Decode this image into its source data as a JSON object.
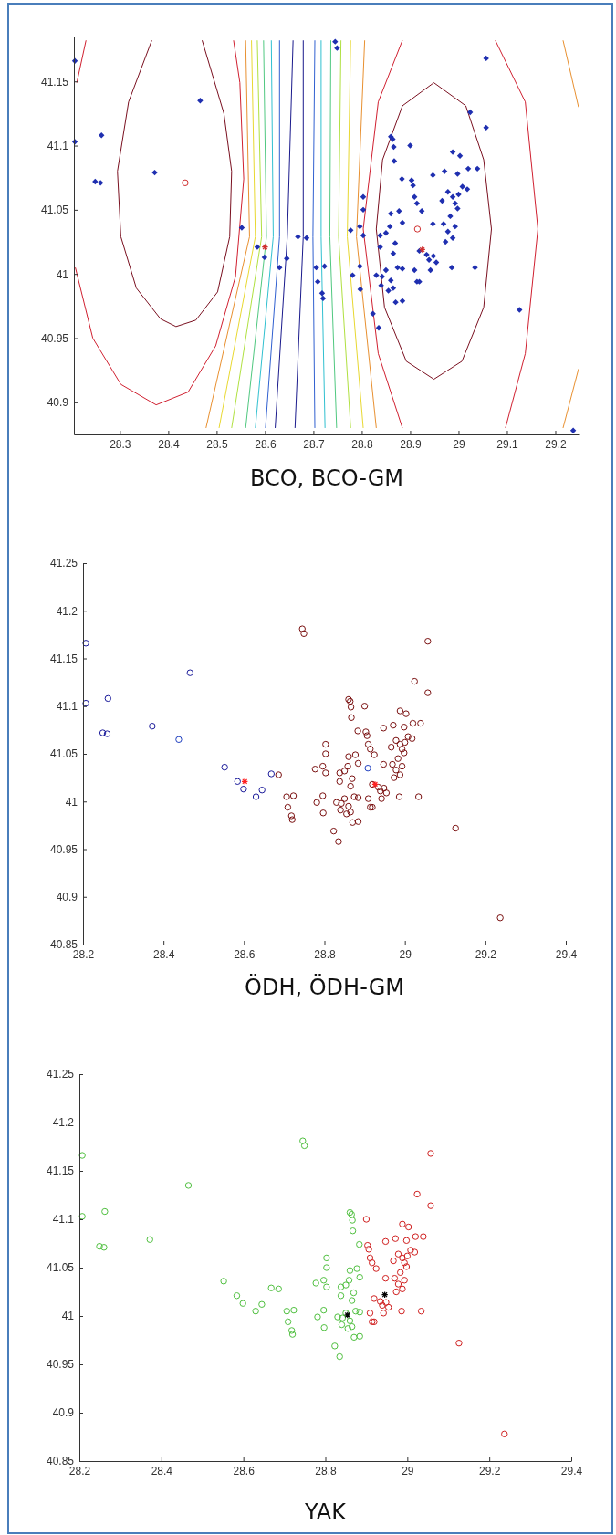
{
  "chart_data": [
    {
      "type": "scatter",
      "title": "BCO, BCO-GM",
      "xlim": [
        28.205,
        29.25
      ],
      "ylim": [
        40.875,
        41.185
      ],
      "xticks": [
        28.3,
        28.4,
        28.5,
        28.6,
        28.7,
        28.8,
        28.9,
        29,
        29.1,
        29.2
      ],
      "yticks": [
        40.9,
        40.95,
        41,
        41.05,
        41.1,
        41.15
      ],
      "grid": false,
      "series": [
        {
          "type": "line",
          "color": "#7a1020",
          "x": [
            28.366,
            28.318,
            28.295,
            28.302,
            28.334,
            28.384,
            28.416,
            28.457,
            28.502,
            28.527,
            28.531,
            28.515,
            28.47
          ],
          "values": [
            41.182,
            41.134,
            41.08,
            41.029,
            40.989,
            40.965,
            40.959,
            40.964,
            40.986,
            41.029,
            41.08,
            41.125,
            41.182
          ]
        },
        {
          "type": "line",
          "color": "#7a1020",
          "x": [
            28.949,
            28.884,
            28.843,
            28.83,
            28.847,
            28.892,
            28.949
          ],
          "values": [
            41.149,
            41.131,
            41.089,
            41.035,
            40.974,
            40.932,
            40.918
          ]
        },
        {
          "type": "line",
          "color": "#7a1020",
          "x": [
            28.949,
            29.007,
            29.052,
            29.068,
            29.052,
            29.015,
            28.949
          ],
          "values": [
            40.918,
            40.932,
            40.974,
            41.035,
            41.089,
            41.131,
            41.149
          ]
        },
        {
          "type": "line",
          "color": "#d02030",
          "x": [
            28.23,
            28.211
          ],
          "values": [
            41.182,
            41.149
          ]
        },
        {
          "type": "line",
          "color": "#d02030",
          "x": [
            28.208,
            28.244,
            28.302,
            28.375,
            28.441,
            28.498,
            28.539,
            28.556,
            28.548,
            28.535
          ],
          "values": [
            41.005,
            40.95,
            40.914,
            40.898,
            40.908,
            40.944,
            40.998,
            41.074,
            41.149,
            41.182
          ]
        },
        {
          "type": "line",
          "color": "#d02030",
          "x": [
            28.884,
            28.834,
            28.803,
            28.834,
            28.884
          ],
          "values": [
            41.182,
            41.134,
            41.035,
            40.938,
            40.88
          ]
        },
        {
          "type": "line",
          "color": "#d02030",
          "x": [
            29.076,
            29.138,
            29.164,
            29.138,
            29.097
          ],
          "values": [
            41.182,
            41.134,
            41.035,
            40.938,
            40.88
          ]
        },
        {
          "type": "line",
          "color": "#e89030",
          "x": [
            29.216,
            29.248
          ],
          "values": [
            41.182,
            41.13
          ]
        },
        {
          "type": "line",
          "color": "#e89030",
          "x": [
            29.248,
            29.216
          ],
          "values": [
            40.926,
            40.88
          ]
        },
        {
          "type": "line",
          "color": "#e89030",
          "x": [
            28.56,
            28.568,
            28.478
          ],
          "values": [
            41.182,
            41.029,
            40.88
          ]
        },
        {
          "type": "line",
          "color": "#e8d830",
          "x": [
            28.572,
            28.58,
            28.505
          ],
          "values": [
            41.182,
            41.029,
            40.88
          ]
        },
        {
          "type": "line",
          "color": "#b0e040",
          "x": [
            28.584,
            28.593,
            28.531
          ],
          "values": [
            41.182,
            41.029,
            40.88
          ]
        },
        {
          "type": "line",
          "color": "#50c880",
          "x": [
            28.597,
            28.603,
            28.56
          ],
          "values": [
            41.182,
            41.029,
            40.88
          ]
        },
        {
          "type": "line",
          "color": "#30c0d0",
          "x": [
            28.613,
            28.617,
            28.58
          ],
          "values": [
            41.182,
            41.029,
            40.88
          ]
        },
        {
          "type": "line",
          "color": "#3060d0",
          "x": [
            28.63,
            28.63,
            28.601
          ],
          "values": [
            41.182,
            41.029,
            40.88
          ]
        },
        {
          "type": "line",
          "color": "#1a1a8c",
          "x": [
            28.658,
            28.646,
            28.621
          ],
          "values": [
            41.182,
            41.029,
            40.88
          ]
        },
        {
          "type": "line",
          "color": "#1a1a8c",
          "x": [
            28.679,
            28.679,
            28.662
          ],
          "values": [
            41.182,
            41.029,
            40.88
          ]
        },
        {
          "type": "line",
          "color": "#3060d0",
          "x": [
            28.703,
            28.699,
            28.703
          ],
          "values": [
            41.182,
            41.029,
            40.88
          ]
        },
        {
          "type": "line",
          "color": "#30c0d0",
          "x": [
            28.716,
            28.716,
            28.724
          ],
          "values": [
            41.182,
            41.029,
            40.88
          ]
        },
        {
          "type": "line",
          "color": "#50c880",
          "x": [
            28.736,
            28.734,
            28.748
          ],
          "values": [
            41.182,
            41.029,
            40.88
          ]
        },
        {
          "type": "line",
          "color": "#b0e040",
          "x": [
            28.757,
            28.752,
            28.777
          ],
          "values": [
            41.182,
            41.029,
            40.88
          ]
        },
        {
          "type": "line",
          "color": "#e8d830",
          "x": [
            28.777,
            28.77,
            28.803
          ],
          "values": [
            41.182,
            41.029,
            40.88
          ]
        },
        {
          "type": "line",
          "color": "#e89030",
          "x": [
            28.806,
            28.789,
            28.83
          ],
          "values": [
            41.182,
            41.029,
            40.88
          ]
        },
        {
          "type": "scatter",
          "marker": "diamond",
          "color": "#1f2fb0",
          "x": [
            28.207,
            28.207,
            28.262,
            28.466,
            28.249,
            28.26,
            28.372,
            28.552,
            28.584,
            28.599,
            28.63,
            28.645,
            28.668,
            28.745,
            28.749,
            28.686,
            28.86,
            28.864,
            28.866,
            28.867,
            28.883,
            28.803,
            28.803,
            28.877,
            28.86,
            28.858,
            28.85,
            28.838,
            28.838,
            28.869,
            28.884,
            28.865,
            28.777,
            28.796,
            28.803,
            28.796,
            28.781,
            28.797,
            28.706,
            28.723,
            28.709,
            28.718,
            28.72,
            28.823,
            28.835,
            28.83,
            28.842,
            28.84,
            28.85,
            28.86,
            28.865,
            28.87,
            28.884,
            28.855,
            28.874,
            28.884,
            29.057,
            29.024,
            29.057,
            28.9,
            28.988,
            29.003,
            28.971,
            28.998,
            29.02,
            29.039,
            28.903,
            28.906,
            28.947,
            28.909,
            28.914,
            28.924,
            28.966,
            28.978,
            28.988,
            28.993,
            29.0,
            29.008,
            28.998,
            28.909,
            28.914,
            28.919,
            28.947,
            28.919,
            28.934,
            28.939,
            28.948,
            28.942,
            28.954,
            28.969,
            28.978,
            28.973,
            28.988,
            28.993,
            28.986,
            29.034,
            29.126,
            29.237,
            28.983,
            29.018
          ],
          "values": [
            41.166,
            41.103,
            41.108,
            41.135,
            41.072,
            41.071,
            41.079,
            41.036,
            41.021,
            41.013,
            41.005,
            41.012,
            41.029,
            41.181,
            41.176,
            41.028,
            41.107,
            41.105,
            41.099,
            41.088,
            41.074,
            41.06,
            41.05,
            41.049,
            41.047,
            41.037,
            41.032,
            41.03,
            41.021,
            41.024,
            41.04,
            41.016,
            41.034,
            41.037,
            41.03,
            41.006,
            40.999,
            40.988,
            41.005,
            41.006,
            40.994,
            40.985,
            40.981,
            40.969,
            40.958,
            40.999,
            40.998,
            40.991,
            41.003,
            40.995,
            40.989,
            40.978,
            40.979,
            40.987,
            41.005,
            41.004,
            41.168,
            41.126,
            41.114,
            41.1,
            41.095,
            41.092,
            41.08,
            41.078,
            41.082,
            41.082,
            41.073,
            41.069,
            41.077,
            41.06,
            41.055,
            41.049,
            41.057,
            41.064,
            41.06,
            41.055,
            41.062,
            41.068,
            41.051,
            41.003,
            40.994,
            40.994,
            41.039,
            41.018,
            41.015,
            41.011,
            41.014,
            41.003,
            41.009,
            41.039,
            41.033,
            41.025,
            41.028,
            41.037,
            41.005,
            41.005,
            40.972,
            40.878,
            41.045,
            41.066
          ]
        },
        {
          "type": "scatter",
          "marker": "circle",
          "color": "#d03030",
          "x": [
            28.435,
            28.915
          ],
          "values": [
            41.071,
            41.035
          ]
        },
        {
          "type": "scatter",
          "marker": "cross",
          "color": "#d03030",
          "x": [
            28.6,
            28.925
          ],
          "values": [
            41.021,
            41.019
          ]
        }
      ]
    },
    {
      "type": "scatter",
      "title": "ÖDH, ÖDH-GM",
      "xlim": [
        28.2,
        29.4
      ],
      "ylim": [
        40.85,
        41.25
      ],
      "xticks": [
        28.2,
        28.4,
        28.6,
        28.8,
        29,
        29.2,
        29.4
      ],
      "yticks": [
        40.85,
        40.9,
        40.95,
        41,
        41.05,
        41.1,
        41.15,
        41.2,
        41.25
      ],
      "grid": false,
      "marker": "circle",
      "series": [
        {
          "color": "#1a1a9a",
          "x": [
            28.207,
            28.207,
            28.262,
            28.466,
            28.249,
            28.26,
            28.372,
            28.552,
            28.584,
            28.599,
            28.63,
            28.645,
            28.668
          ],
          "values": [
            41.166,
            41.103,
            41.108,
            41.135,
            41.072,
            41.071,
            41.079,
            41.036,
            41.021,
            41.013,
            41.005,
            41.012,
            41.029
          ]
        },
        {
          "color": "#7a1010",
          "x": [
            28.745,
            28.749,
            28.686,
            28.86,
            28.864,
            28.866,
            28.867,
            28.883,
            28.803,
            28.803,
            28.877,
            28.86,
            28.858,
            28.85,
            28.838,
            28.838,
            28.869,
            28.884,
            28.865,
            28.777,
            28.796,
            28.803,
            28.796,
            28.781,
            28.797,
            28.706,
            28.723,
            28.709,
            28.718,
            28.72,
            28.823,
            28.835,
            28.83,
            28.842,
            28.84,
            28.85,
            28.86,
            28.865,
            28.87,
            28.884,
            28.855,
            28.874,
            28.884,
            29.057,
            29.024,
            29.057,
            28.9,
            28.988,
            29.003,
            28.971,
            28.998,
            29.02,
            29.039,
            28.903,
            28.906,
            28.947,
            28.909,
            28.914,
            28.924,
            28.966,
            28.978,
            28.988,
            28.993,
            29.0,
            29.008,
            28.998,
            28.909,
            28.914,
            28.919,
            28.947,
            28.919,
            28.934,
            28.939,
            28.948,
            28.942,
            28.954,
            28.969,
            28.978,
            28.973,
            28.988,
            28.993,
            28.986,
            29.034,
            29.126,
            29.237,
            28.983,
            29.018
          ],
          "values": [
            41.181,
            41.176,
            41.028,
            41.107,
            41.105,
            41.099,
            41.088,
            41.074,
            41.06,
            41.05,
            41.049,
            41.047,
            41.037,
            41.032,
            41.03,
            41.021,
            41.024,
            41.04,
            41.016,
            41.034,
            41.037,
            41.03,
            41.006,
            40.999,
            40.988,
            41.005,
            41.006,
            40.994,
            40.985,
            40.981,
            40.969,
            40.958,
            40.999,
            40.998,
            40.991,
            41.003,
            40.995,
            40.989,
            40.978,
            40.979,
            40.987,
            41.005,
            41.004,
            41.168,
            41.126,
            41.114,
            41.1,
            41.095,
            41.092,
            41.08,
            41.078,
            41.082,
            41.082,
            41.073,
            41.069,
            41.077,
            41.06,
            41.055,
            41.049,
            41.057,
            41.064,
            41.06,
            41.055,
            41.062,
            41.068,
            41.051,
            41.003,
            40.994,
            40.994,
            41.039,
            41.018,
            41.015,
            41.011,
            41.014,
            41.003,
            41.009,
            41.039,
            41.033,
            41.025,
            41.028,
            41.037,
            41.005,
            41.005,
            40.972,
            40.878,
            41.045,
            41.066
          ]
        },
        {
          "color": "#2040c0",
          "x": [
            28.438,
            28.908
          ],
          "values": [
            41.065,
            41.035
          ]
        },
        {
          "marker": "cross",
          "color": "#ff2020",
          "x": [
            28.602,
            28.926
          ],
          "values": [
            41.021,
            41.018
          ]
        }
      ]
    },
    {
      "type": "scatter",
      "title": "YAK",
      "xlim": [
        28.2,
        29.4
      ],
      "ylim": [
        40.85,
        41.25
      ],
      "xticks": [
        28.2,
        28.4,
        28.6,
        28.8,
        29,
        29.2,
        29.4
      ],
      "yticks": [
        40.85,
        40.9,
        40.95,
        41,
        41.05,
        41.1,
        41.15,
        41.2,
        41.25
      ],
      "grid": false,
      "marker": "circle",
      "series": [
        {
          "color": "#50c040",
          "x": [
            28.207,
            28.207,
            28.262,
            28.466,
            28.249,
            28.26,
            28.372,
            28.552,
            28.584,
            28.599,
            28.63,
            28.645,
            28.668,
            28.745,
            28.749,
            28.686,
            28.86,
            28.864,
            28.866,
            28.867,
            28.883,
            28.803,
            28.803,
            28.877,
            28.86,
            28.858,
            28.85,
            28.838,
            28.838,
            28.869,
            28.884,
            28.865,
            28.777,
            28.796,
            28.803,
            28.796,
            28.781,
            28.797,
            28.706,
            28.723,
            28.709,
            28.718,
            28.72,
            28.823,
            28.835,
            28.83,
            28.842,
            28.84,
            28.85,
            28.86,
            28.865,
            28.87,
            28.884,
            28.855,
            28.874,
            28.884
          ],
          "values": [
            41.166,
            41.103,
            41.108,
            41.135,
            41.072,
            41.071,
            41.079,
            41.036,
            41.021,
            41.013,
            41.005,
            41.012,
            41.029,
            41.181,
            41.176,
            41.028,
            41.107,
            41.105,
            41.099,
            41.088,
            41.074,
            41.06,
            41.05,
            41.049,
            41.047,
            41.037,
            41.032,
            41.03,
            41.021,
            41.024,
            41.04,
            41.016,
            41.034,
            41.037,
            41.03,
            41.006,
            40.999,
            40.988,
            41.005,
            41.006,
            40.994,
            40.985,
            40.981,
            40.969,
            40.958,
            40.999,
            40.998,
            40.991,
            41.003,
            40.995,
            40.989,
            40.978,
            40.979,
            40.987,
            41.005,
            41.004
          ]
        },
        {
          "color": "#d02020",
          "x": [
            29.057,
            29.024,
            29.057,
            28.9,
            28.988,
            29.003,
            28.971,
            28.998,
            29.02,
            29.039,
            28.903,
            28.906,
            28.947,
            28.909,
            28.914,
            28.924,
            28.966,
            28.978,
            28.988,
            28.993,
            29.0,
            29.008,
            28.998,
            28.909,
            28.914,
            28.919,
            28.947,
            28.919,
            28.934,
            28.939,
            28.948,
            28.942,
            28.954,
            28.969,
            28.978,
            28.973,
            28.988,
            28.993,
            28.986,
            29.034,
            29.126,
            29.237,
            28.983,
            29.018
          ],
          "values": [
            41.168,
            41.126,
            41.114,
            41.1,
            41.095,
            41.092,
            41.08,
            41.078,
            41.082,
            41.082,
            41.073,
            41.069,
            41.077,
            41.06,
            41.055,
            41.049,
            41.057,
            41.064,
            41.06,
            41.055,
            41.062,
            41.068,
            41.051,
            41.003,
            40.994,
            40.994,
            41.039,
            41.018,
            41.015,
            41.011,
            41.014,
            41.003,
            41.009,
            41.039,
            41.033,
            41.025,
            41.028,
            41.037,
            41.005,
            41.005,
            40.972,
            40.878,
            41.045,
            41.066
          ]
        },
        {
          "marker": "cross",
          "color": "#000000",
          "x": [
            28.854,
            28.945
          ],
          "values": [
            41.001,
            41.022
          ]
        }
      ]
    }
  ]
}
